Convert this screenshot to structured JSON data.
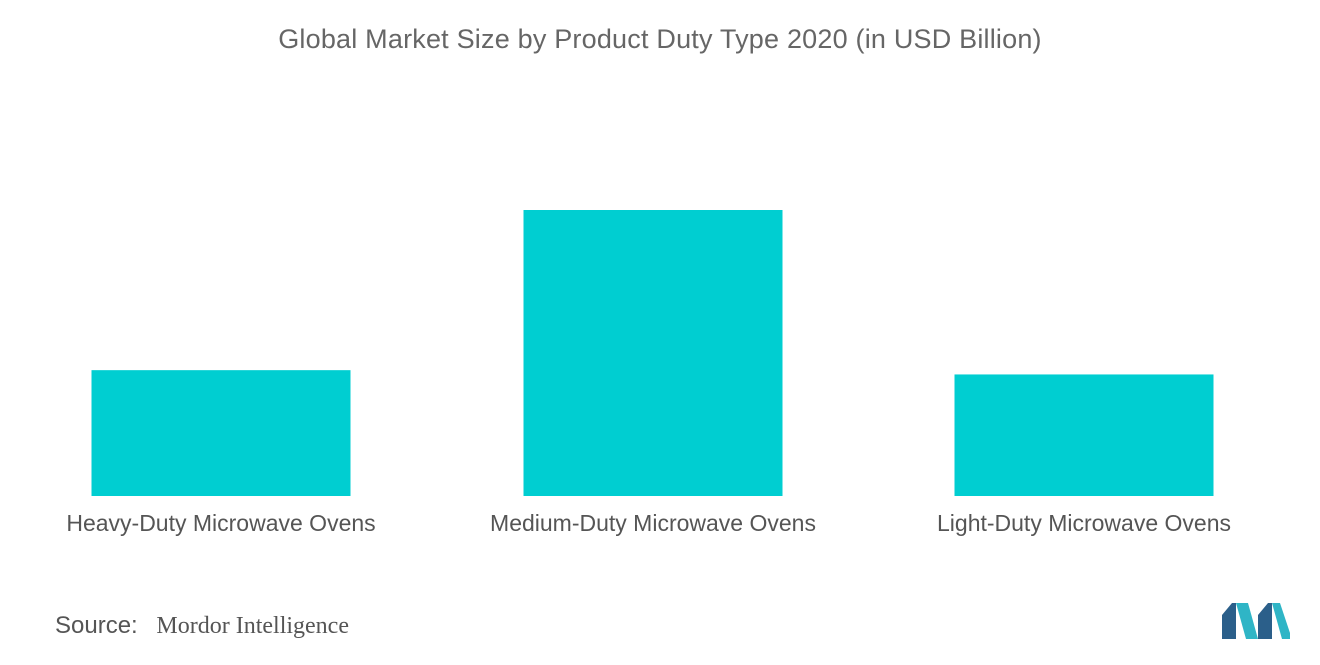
{
  "chart_data": {
    "type": "bar",
    "title": "Global Market Size by Product Duty Type 2020 (in USD Billion)",
    "categories": [
      "Heavy-Duty Microwave Ovens",
      "Medium-Duty Microwave Ovens",
      "Light-Duty Microwave Ovens"
    ],
    "values": [
      44,
      100,
      42.5
    ],
    "ylim": [
      0,
      100
    ],
    "xlabel": "",
    "ylabel": "",
    "grid": false,
    "legend": "none",
    "bar_color": "#00ced1"
  },
  "source": {
    "label": "Source:",
    "value": "Mordor Intelligence"
  },
  "logo": {
    "colors": [
      "#2b5f8a",
      "#2fb5c6"
    ]
  }
}
